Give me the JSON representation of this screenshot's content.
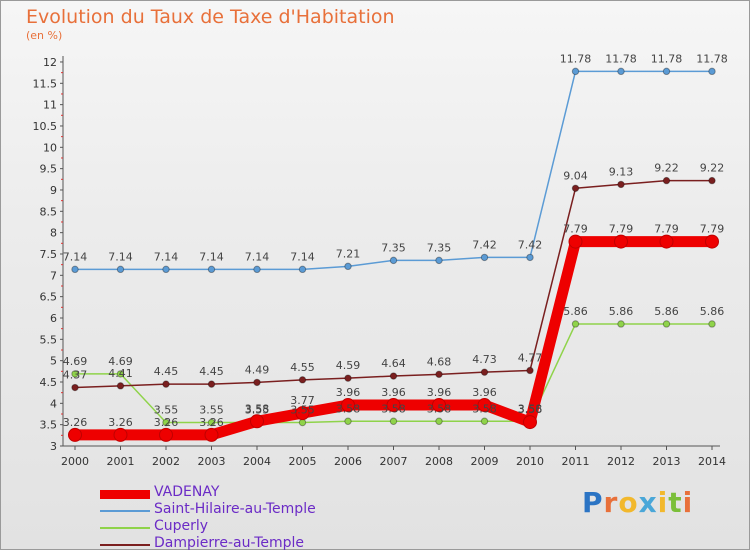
{
  "header": {
    "title": "Evolution du Taux de Taxe d'Habitation",
    "subtitle": "(en %)"
  },
  "logo": "Proxiti",
  "chart_data": {
    "type": "line",
    "title": "Evolution du Taux de Taxe d'Habitation",
    "ylabel": "(en %)",
    "x": [
      "2000",
      "2001",
      "2002",
      "2003",
      "2004",
      "2005",
      "2006",
      "2007",
      "2008",
      "2009",
      "2010",
      "2011",
      "2012",
      "2013",
      "2014"
    ],
    "ylim": [
      3,
      12
    ],
    "yticks": [
      "3",
      "3.5",
      "4",
      "4.5",
      "5",
      "5.5",
      "6",
      "6.5",
      "7",
      "7.5",
      "8",
      "8.5",
      "9",
      "9.5",
      "10",
      "10.5",
      "11",
      "11.5",
      "12"
    ],
    "grid": false,
    "legend": "bottom-left",
    "series": [
      {
        "name": "VADENAY",
        "color": "#ee0000",
        "values": [
          3.26,
          3.26,
          3.26,
          3.26,
          3.58,
          3.77,
          3.96,
          3.96,
          3.96,
          3.96,
          3.56,
          7.79,
          7.79,
          7.79,
          7.79
        ],
        "labels": [
          "3.26",
          "3.26",
          "3.26",
          "3.26",
          "3.58",
          "3.77",
          "3.96",
          "3.96",
          "3.96",
          "3.96",
          "3.56",
          "7.79",
          "7.79",
          "7.79",
          "7.79"
        ]
      },
      {
        "name": "Saint-Hilaire-au-Temple",
        "color": "#5b9bd5",
        "values": [
          7.14,
          7.14,
          7.14,
          7.14,
          7.14,
          7.14,
          7.21,
          7.35,
          7.35,
          7.42,
          7.42,
          11.78,
          11.78,
          11.78,
          11.78
        ],
        "labels": [
          "7.14",
          "7.14",
          "7.14",
          "7.14",
          "7.14",
          "7.14",
          "7.21",
          "7.35",
          "7.35",
          "7.42",
          "7.42",
          "11.78",
          "11.78",
          "11.78",
          "11.78"
        ]
      },
      {
        "name": "Cuperly",
        "color": "#8fd34a",
        "values": [
          4.69,
          4.69,
          3.55,
          3.55,
          3.55,
          3.55,
          3.58,
          3.58,
          3.58,
          3.58,
          3.58,
          5.86,
          5.86,
          5.86,
          5.86
        ],
        "labels": [
          "4.69",
          "4.69",
          "3.55",
          "3.55",
          "3.55",
          "3.55",
          "3.58",
          "3.58",
          "3.58",
          "3.58",
          "3.58",
          "5.86",
          "5.86",
          "5.86",
          "5.86"
        ]
      },
      {
        "name": "Dampierre-au-Temple",
        "color": "#7a1f1f",
        "values": [
          4.37,
          4.41,
          4.45,
          4.45,
          4.49,
          4.55,
          4.59,
          4.64,
          4.68,
          4.73,
          4.77,
          9.04,
          9.13,
          9.22,
          9.22
        ],
        "labels": [
          "4.37",
          "4.41",
          "4.45",
          "4.45",
          "4.49",
          "4.55",
          "4.59",
          "4.64",
          "4.68",
          "4.73",
          "4.77",
          "9.04",
          "9.13",
          "9.22",
          "9.22"
        ]
      }
    ]
  }
}
